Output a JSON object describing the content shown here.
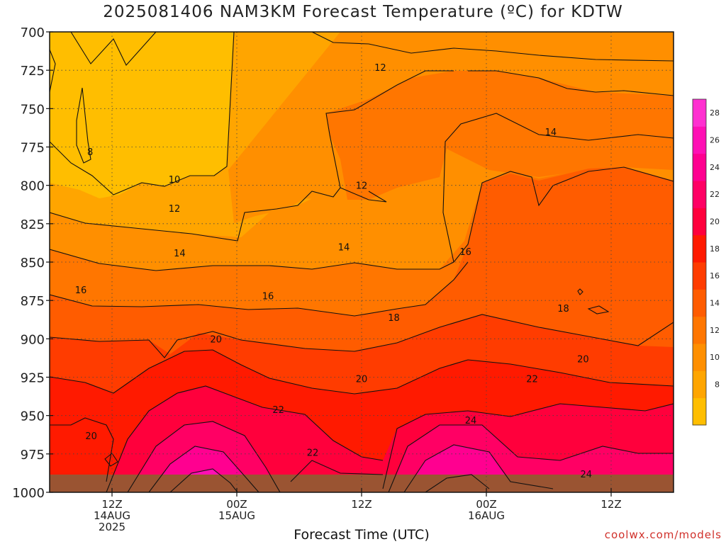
{
  "title": "2025081406 NAM3KM Forecast Temperature (ºC) for KDTW",
  "credit": "coolwx.com/models",
  "chart_data": {
    "type": "heatmap",
    "title": "2025081406 NAM3KM Forecast Temperature (ºC) for KDTW",
    "xlabel": "Forecast Time (UTC)",
    "ylabel": "",
    "x_range_hours": [
      0,
      60
    ],
    "x_ticks": [
      {
        "hour": 6,
        "label": [
          "12Z",
          "14AUG",
          "2025"
        ]
      },
      {
        "hour": 18,
        "label": [
          "00Z",
          "15AUG"
        ]
      },
      {
        "hour": 30,
        "label": [
          "12Z"
        ]
      },
      {
        "hour": 42,
        "label": [
          "00Z",
          "16AUG"
        ]
      },
      {
        "hour": 54,
        "label": [
          "12Z"
        ]
      }
    ],
    "y_ticks": [
      700,
      725,
      750,
      775,
      800,
      825,
      850,
      875,
      900,
      925,
      950,
      975,
      1000
    ],
    "ylim": [
      700,
      1000
    ],
    "grid": true,
    "colorbar": {
      "levels": [
        8,
        10,
        12,
        14,
        16,
        18,
        20,
        22,
        24,
        26,
        28
      ],
      "colors": [
        "#ffbe00",
        "#ffa500",
        "#ff8f00",
        "#ff7600",
        "#ff5c00",
        "#ff3c00",
        "#ff1a00",
        "#ff003c",
        "#ff0064",
        "#ff0090",
        "#ff10b4",
        "#ff30d0"
      ]
    },
    "contour_labels": [
      {
        "text": "8",
        "hour": 3.9,
        "p": 778
      },
      {
        "text": "10",
        "hour": 12,
        "p": 796
      },
      {
        "text": "12",
        "hour": 12,
        "p": 815
      },
      {
        "text": "12",
        "hour": 31.8,
        "p": 723
      },
      {
        "text": "12",
        "hour": 30,
        "p": 800
      },
      {
        "text": "14",
        "hour": 12.5,
        "p": 844
      },
      {
        "text": "14",
        "hour": 28.3,
        "p": 840
      },
      {
        "text": "14",
        "hour": 48.2,
        "p": 765
      },
      {
        "text": "16",
        "hour": 3,
        "p": 868
      },
      {
        "text": "16",
        "hour": 21,
        "p": 872
      },
      {
        "text": "16",
        "hour": 40,
        "p": 843
      },
      {
        "text": "18",
        "hour": 33.1,
        "p": 886
      },
      {
        "text": "18",
        "hour": 49.4,
        "p": 880
      },
      {
        "text": "20",
        "hour": 16,
        "p": 900
      },
      {
        "text": "20",
        "hour": 30,
        "p": 926
      },
      {
        "text": "20",
        "hour": 51.3,
        "p": 913
      },
      {
        "text": "20",
        "hour": 4,
        "p": 963
      },
      {
        "text": "22",
        "hour": 22,
        "p": 946
      },
      {
        "text": "22",
        "hour": 25.3,
        "p": 974
      },
      {
        "text": "22",
        "hour": 46.4,
        "p": 926
      },
      {
        "text": "24",
        "hour": 40.5,
        "p": 953
      },
      {
        "text": "24",
        "hour": 51.6,
        "p": 988
      }
    ]
  }
}
